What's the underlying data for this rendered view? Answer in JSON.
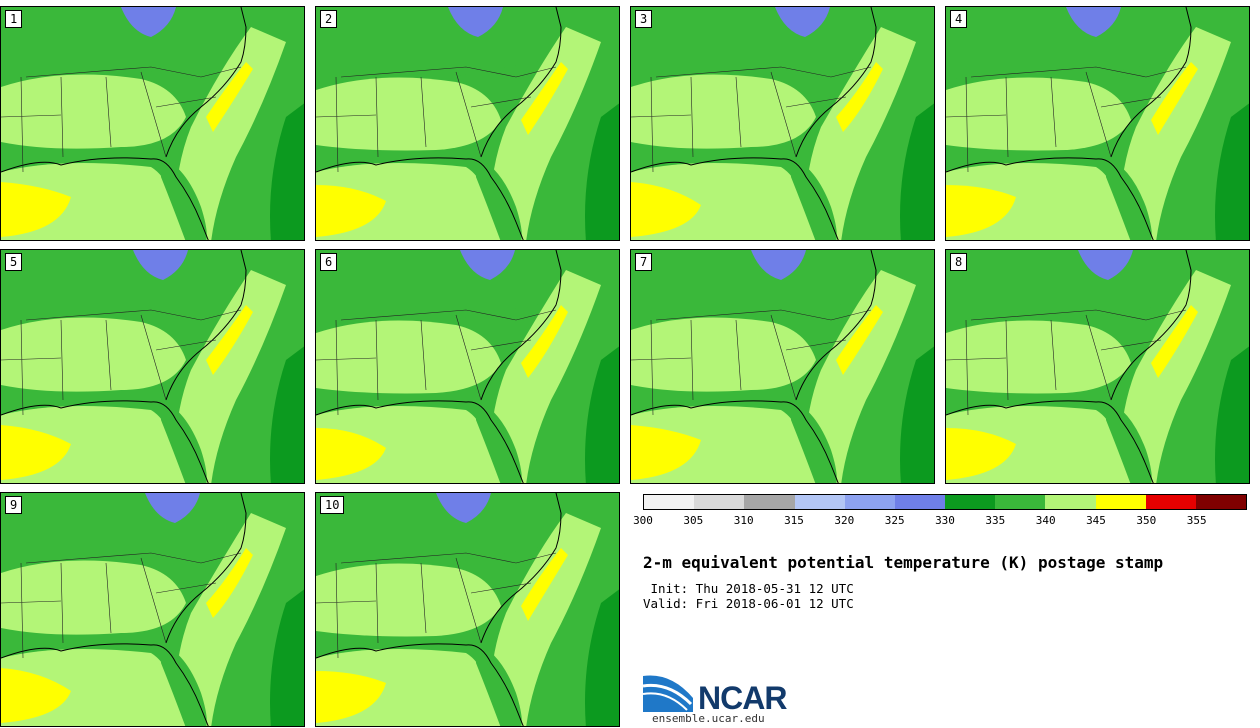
{
  "panels": [
    {
      "label": "1"
    },
    {
      "label": "2"
    },
    {
      "label": "3"
    },
    {
      "label": "4"
    },
    {
      "label": "5"
    },
    {
      "label": "6"
    },
    {
      "label": "7"
    },
    {
      "label": "8"
    },
    {
      "label": "9"
    },
    {
      "label": "10"
    }
  ],
  "colorbar": {
    "ticks": [
      "300",
      "305",
      "310",
      "315",
      "320",
      "325",
      "330",
      "335",
      "340",
      "345",
      "350",
      "355"
    ],
    "colors": [
      "#f2f2f2",
      "#d9d9d9",
      "#a6a6a6",
      "#b3c6f5",
      "#8da2f0",
      "#6f7fe8",
      "#0c9a1f",
      "#3ab83a",
      "#b3f577",
      "#ffff00",
      "#e60000",
      "#800000"
    ]
  },
  "title": "2-m equivalent potential temperature (K) postage stamp",
  "init": " Init: Thu 2018-05-31 12 UTC",
  "valid": "Valid: Fri 2018-06-01 12 UTC",
  "logo": {
    "name": "NCAR",
    "url": "ensemble.ucar.edu"
  }
}
